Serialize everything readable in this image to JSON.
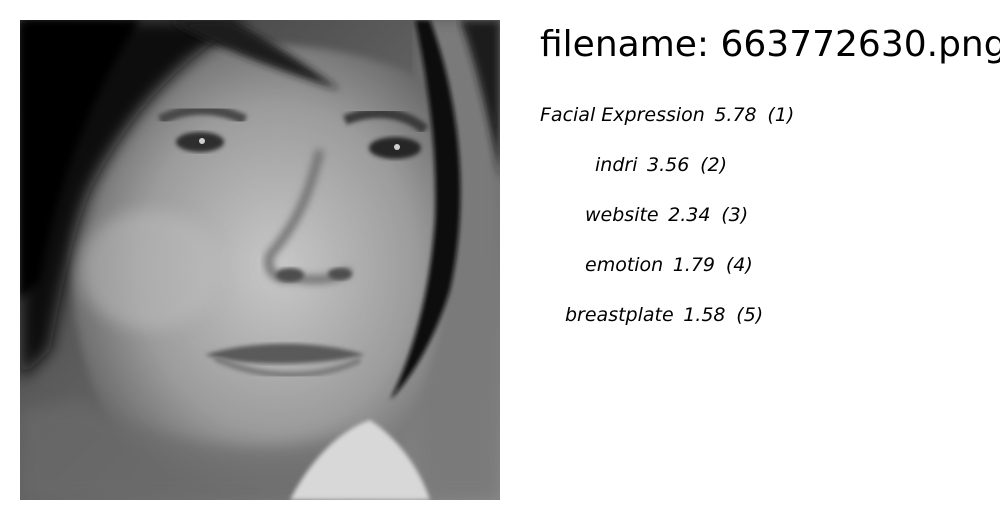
{
  "filename_text": "filename: 663772630.png",
  "predictions": [
    {
      "label": "Facial Expression",
      "score": "5.78",
      "rank": "(1)"
    },
    {
      "label": "indri",
      "score": "3.56",
      "rank": "(2)"
    },
    {
      "label": "website",
      "score": "2.34",
      "rank": "(3)"
    },
    {
      "label": "emotion",
      "score": "1.79",
      "rank": "(4)"
    },
    {
      "label": "breastplate",
      "score": "1.58",
      "rank": "(5)"
    }
  ]
}
